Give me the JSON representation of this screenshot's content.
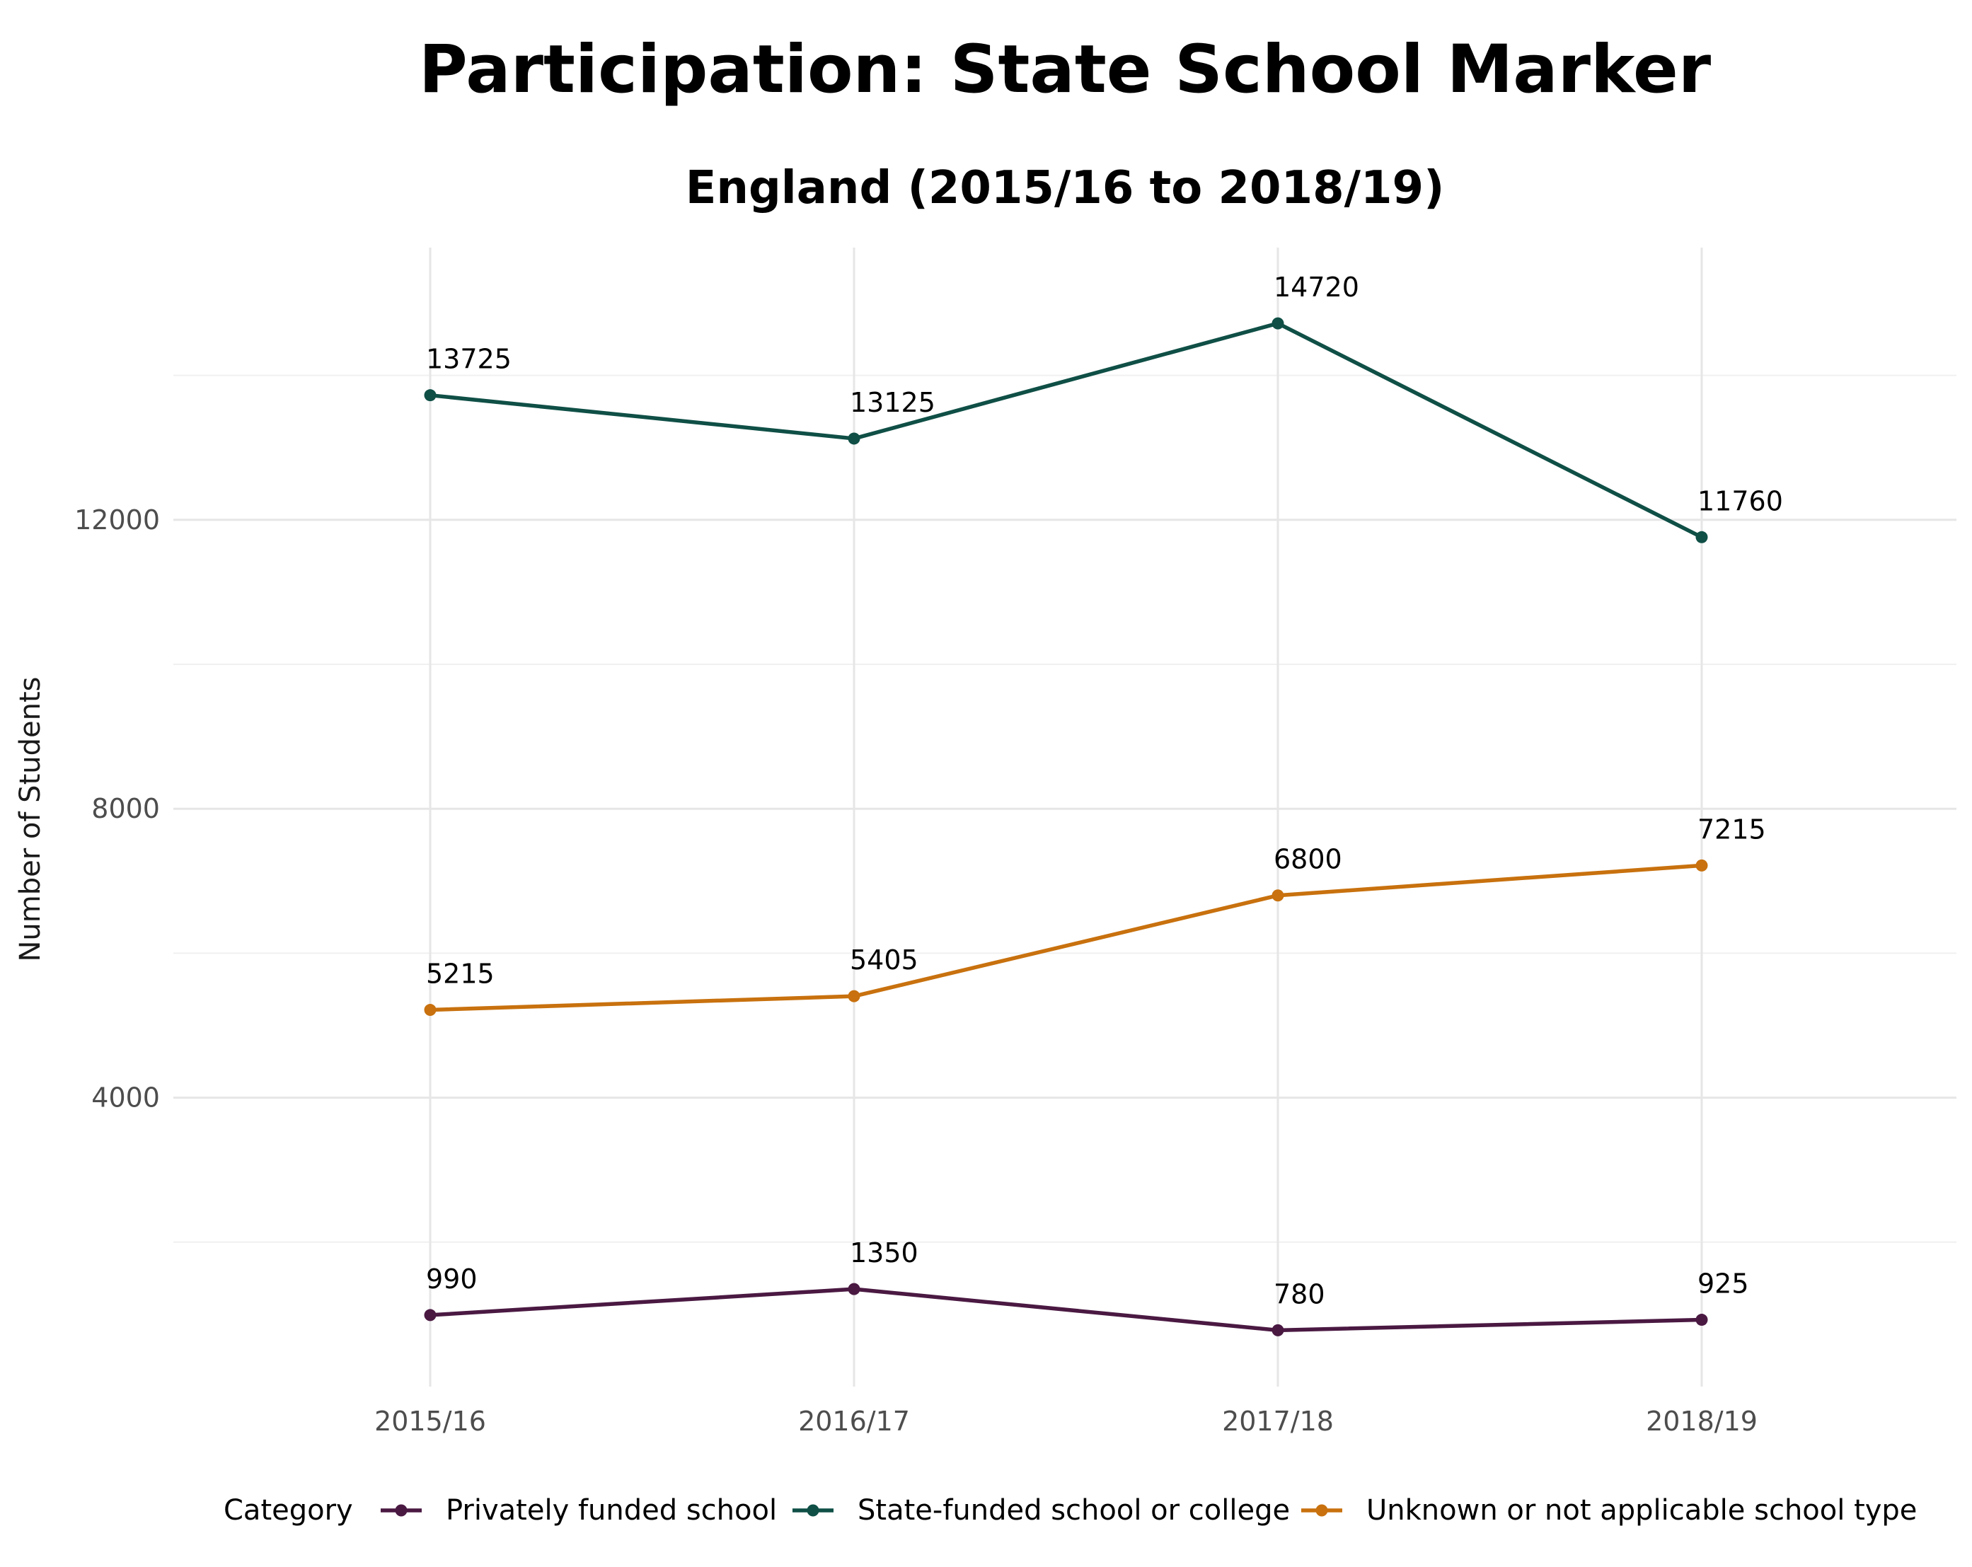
{
  "chart_data": {
    "type": "line",
    "title": "Participation: State School Marker",
    "subtitle": "England (2015/16 to 2018/19)",
    "xlabel": "",
    "ylabel": "Number of Students",
    "categories": [
      "2015/16",
      "2016/17",
      "2017/18",
      "2018/19"
    ],
    "yticks": [
      4000,
      8000,
      12000
    ],
    "ylim": [
      0,
      15600
    ],
    "grid": true,
    "legend": {
      "title": "Category",
      "position": "bottom"
    },
    "series": [
      {
        "name": "Privately funded school",
        "color": "#4a1942",
        "values": [
          990,
          1350,
          780,
          925
        ]
      },
      {
        "name": "State-funded school or college",
        "color": "#0f4f46",
        "values": [
          13725,
          13125,
          14720,
          11760
        ]
      },
      {
        "name": "Unknown or not applicable school type",
        "color": "#c8710e",
        "values": [
          5215,
          5405,
          6800,
          7215
        ]
      }
    ]
  }
}
